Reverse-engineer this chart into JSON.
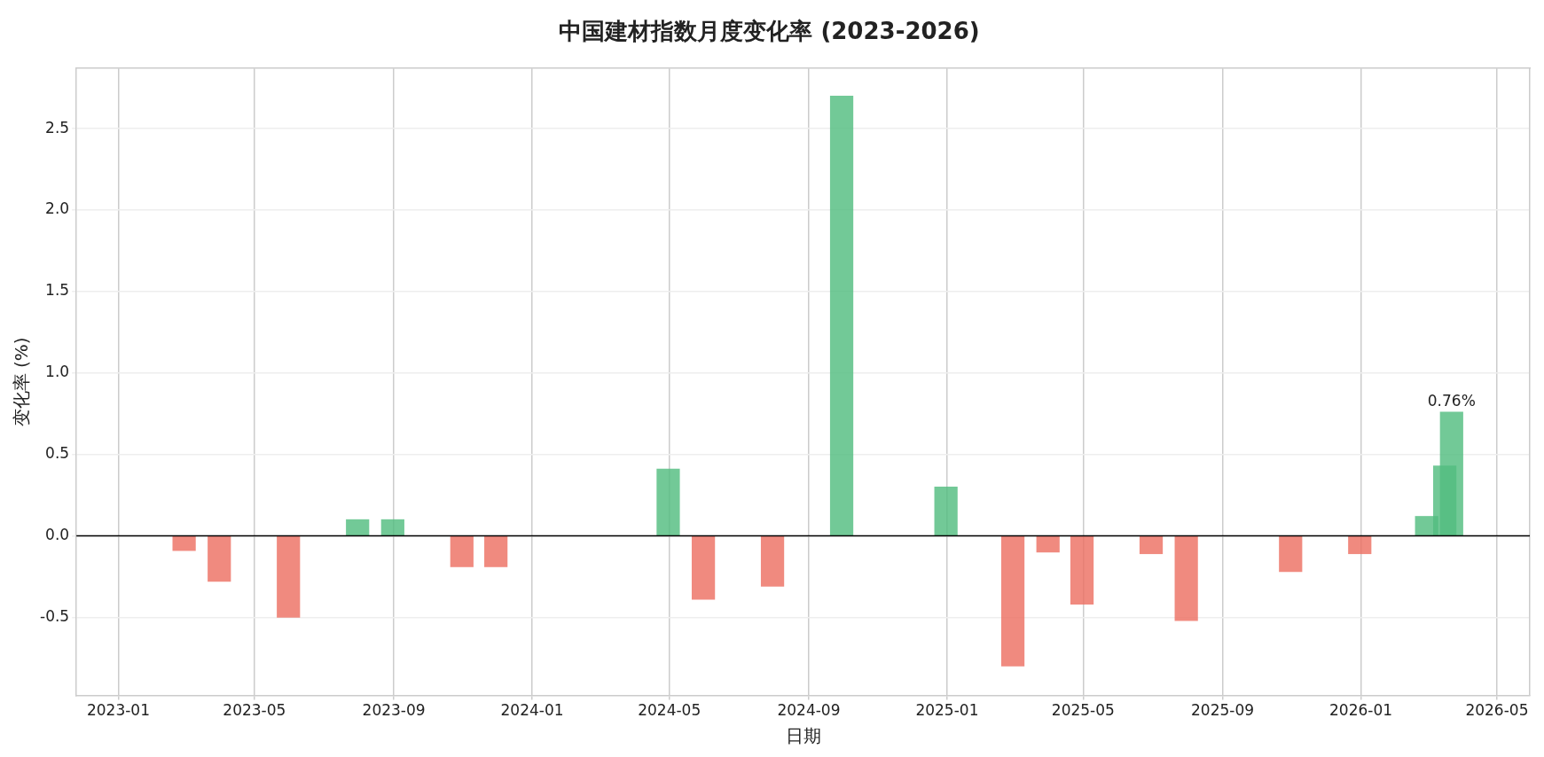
{
  "chart_data": {
    "type": "bar",
    "title": "中国建材指数月度变化率 (2023-2026)",
    "xlabel": "日期",
    "ylabel": "变化率 (%)",
    "x": [
      "2023-02-28",
      "2023-03-31",
      "2023-05-31",
      "2023-07-31",
      "2023-08-31",
      "2023-10-31",
      "2023-11-30",
      "2024-04-30",
      "2024-05-31",
      "2024-07-31",
      "2024-09-30",
      "2024-12-31",
      "2025-02-28",
      "2025-03-31",
      "2025-04-30",
      "2025-06-30",
      "2025-07-31",
      "2025-10-31",
      "2025-12-31",
      "2026-02-28",
      "2026-03-16",
      "2026-03-22"
    ],
    "values": [
      -0.09,
      -0.28,
      -0.5,
      0.1,
      0.1,
      -0.19,
      -0.19,
      0.41,
      -0.39,
      -0.31,
      2.7,
      0.3,
      -0.8,
      -0.1,
      -0.42,
      -0.11,
      -0.52,
      -0.22,
      -0.11,
      0.12,
      0.43,
      0.76
    ],
    "colors": [
      "#ec6f62",
      "#ec6f62",
      "#ec6f62",
      "#52bd7f",
      "#52bd7f",
      "#ec6f62",
      "#ec6f62",
      "#52bd7f",
      "#ec6f62",
      "#ec6f62",
      "#52bd7f",
      "#52bd7f",
      "#ec6f62",
      "#ec6f62",
      "#ec6f62",
      "#ec6f62",
      "#ec6f62",
      "#ec6f62",
      "#ec6f62",
      "#52bd7f",
      "#52bd7f",
      "#52bd7f"
    ],
    "value_labels": [
      null,
      null,
      null,
      null,
      null,
      null,
      null,
      null,
      null,
      null,
      null,
      null,
      null,
      null,
      null,
      null,
      null,
      null,
      null,
      null,
      null,
      "0.76%"
    ],
    "xlim": [
      "2022-11-25",
      "2026-05-30"
    ],
    "xticks": [
      "2023-01",
      "2023-05",
      "2023-09",
      "2024-01",
      "2024-05",
      "2024-09",
      "2025-01",
      "2025-05",
      "2025-09",
      "2026-01",
      "2026-05"
    ],
    "ylim": [
      -0.98,
      2.87
    ],
    "yticks": [
      -0.5,
      {
        "value": 0,
        "label": "0.0"
      },
      0.5,
      {
        "value": 1,
        "label": "1.0"
      },
      1.5,
      {
        "value": 2,
        "label": "2.0"
      },
      2.5
    ],
    "ref_lines": [
      {
        "axis": "y",
        "value": 0,
        "color": "#000000"
      }
    ],
    "grid": true
  }
}
